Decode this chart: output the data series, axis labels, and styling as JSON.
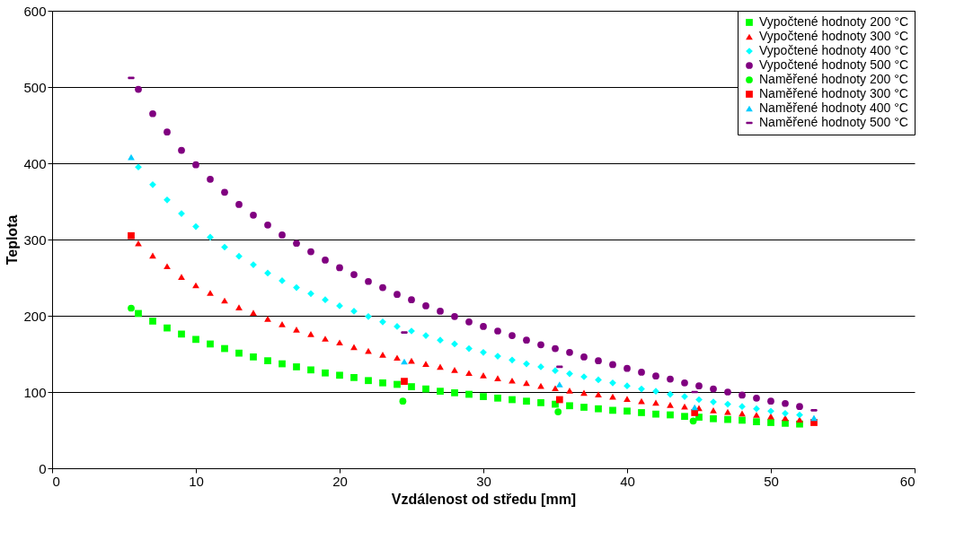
{
  "chart_data": {
    "type": "scatter",
    "xlabel": "Vzdálenost od středu [mm]",
    "ylabel": "Teplota",
    "xlim": [
      0,
      60
    ],
    "xticks": [
      0,
      10,
      20,
      30,
      40,
      50,
      60
    ],
    "ylim": [
      0,
      600
    ],
    "yticks": [
      0,
      100,
      200,
      300,
      400,
      500,
      600
    ],
    "grid": "y",
    "legend": "top right",
    "x": [
      6,
      7,
      8,
      9,
      10,
      11,
      12,
      13,
      14,
      15,
      16,
      17,
      18,
      19,
      20,
      21,
      22,
      23,
      24,
      25,
      26,
      27,
      28,
      29,
      30,
      31,
      32,
      33,
      34,
      35,
      36,
      37,
      38,
      39,
      40,
      41,
      42,
      43,
      44,
      45,
      46,
      47,
      48,
      49,
      50,
      51,
      52
    ],
    "series": [
      {
        "name": "Vypočtené hodnoty 200 °C",
        "color": "#00ff00",
        "marker": "square",
        "values": [
          203,
          193,
          184,
          176,
          169,
          163,
          157,
          151,
          146,
          141,
          137,
          133,
          129,
          125,
          122,
          119,
          115,
          112,
          110,
          107,
          104,
          101,
          99,
          97,
          94,
          92,
          90,
          88,
          86,
          84,
          82,
          80,
          78,
          76,
          75,
          73,
          71,
          70,
          68,
          67,
          65,
          64,
          63,
          61,
          60,
          59,
          58
        ]
      },
      {
        "name": "Vypočtené hodnoty 300 °C",
        "color": "#ff0000",
        "marker": "triangle",
        "values": [
          295,
          279,
          265,
          251,
          240,
          230,
          220,
          211,
          204,
          196,
          189,
          182,
          176,
          170,
          165,
          159,
          154,
          149,
          145,
          141,
          137,
          133,
          129,
          125,
          122,
          118,
          115,
          112,
          108,
          105,
          102,
          99,
          97,
          94,
          91,
          88,
          86,
          83,
          81,
          79,
          76,
          74,
          72,
          70,
          68,
          66,
          64
        ]
      },
      {
        "name": "Vypočtené hodnoty 400 °C",
        "color": "#00ffff",
        "marker": "diamond",
        "values": [
          395,
          372,
          352,
          334,
          317,
          303,
          290,
          278,
          267,
          256,
          246,
          237,
          229,
          221,
          213,
          206,
          199,
          192,
          186,
          180,
          174,
          168,
          163,
          157,
          152,
          147,
          142,
          137,
          133,
          128,
          124,
          120,
          116,
          112,
          108,
          104,
          101,
          97,
          94,
          90,
          87,
          84,
          81,
          78,
          75,
          72,
          70
        ]
      },
      {
        "name": "Vypočtené hodnoty 500 °C",
        "color": "#800080",
        "marker": "circle",
        "values": [
          497,
          465,
          441,
          417,
          398,
          379,
          362,
          346,
          332,
          319,
          306,
          295,
          284,
          273,
          263,
          254,
          245,
          237,
          228,
          221,
          213,
          206,
          199,
          192,
          186,
          180,
          174,
          168,
          162,
          157,
          152,
          146,
          141,
          136,
          131,
          126,
          121,
          117,
          112,
          108,
          104,
          100,
          96,
          92,
          88,
          85,
          81
        ]
      },
      {
        "name": "Naměřené hodnoty 200 °C",
        "color": "#00ff00",
        "marker": "circle",
        "x": [
          5.5,
          24.4,
          35.2,
          44.6
        ],
        "values": [
          210,
          88,
          74,
          62
        ]
      },
      {
        "name": "Naměřené hodnoty 300 °C",
        "color": "#ff0000",
        "marker": "square",
        "x": [
          5.5,
          24.5,
          35.3,
          44.7,
          53
        ],
        "values": [
          305,
          114,
          90,
          73,
          60
        ]
      },
      {
        "name": "Naměřené hodnoty 400 °C",
        "color": "#00ccff",
        "marker": "triangle",
        "x": [
          5.5,
          24.5,
          35.3,
          44.7,
          53
        ],
        "values": [
          408,
          140,
          110,
          80,
          66
        ]
      },
      {
        "name": "Naměřené hodnoty 500 °C",
        "color": "#800080",
        "x": [
          5.5,
          24.5,
          35.3,
          44.7,
          53
        ],
        "values": [
          512,
          178,
          133,
          100,
          76
        ]
      }
    ]
  }
}
